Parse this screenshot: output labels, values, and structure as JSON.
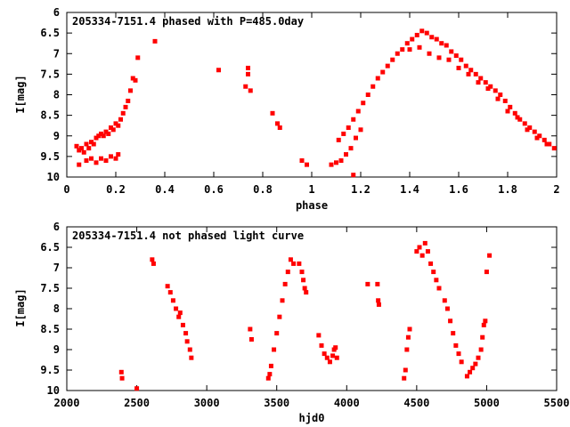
{
  "chart_data": [
    {
      "type": "scatter",
      "title": "205334-7151.4 phased with P=485.0day",
      "xlabel": "phase",
      "ylabel": "I[mag]",
      "xlim": [
        0,
        2
      ],
      "ylim": [
        6,
        10
      ],
      "y_inverted": true,
      "xticks": [
        "0",
        "0.2",
        "0.4",
        "0.6",
        "0.8",
        "1",
        "1.2",
        "1.4",
        "1.6",
        "1.8",
        "2"
      ],
      "xtick_values": [
        0,
        0.2,
        0.4,
        0.6,
        0.8,
        1.0,
        1.2,
        1.4,
        1.6,
        1.8,
        2.0
      ],
      "yticks": [
        "6",
        "6.5",
        "7",
        "7.5",
        "8",
        "8.5",
        "9",
        "9.5",
        "10"
      ],
      "ytick_values": [
        6,
        6.5,
        7,
        7.5,
        8,
        8.5,
        9,
        9.5,
        10
      ],
      "marker_color": "#ff0000",
      "series": [
        {
          "points": [
            [
              0.04,
              9.25
            ],
            [
              0.05,
              9.35
            ],
            [
              0.06,
              9.3
            ],
            [
              0.07,
              9.4
            ],
            [
              0.08,
              9.2
            ],
            [
              0.09,
              9.3
            ],
            [
              0.1,
              9.15
            ],
            [
              0.11,
              9.2
            ],
            [
              0.12,
              9.05
            ],
            [
              0.13,
              9.0
            ],
            [
              0.14,
              8.95
            ],
            [
              0.15,
              9.0
            ],
            [
              0.16,
              8.9
            ],
            [
              0.17,
              8.95
            ],
            [
              0.18,
              8.8
            ],
            [
              0.19,
              8.85
            ],
            [
              0.2,
              8.7
            ],
            [
              0.21,
              8.75
            ],
            [
              0.22,
              8.6
            ],
            [
              0.23,
              8.45
            ],
            [
              0.24,
              8.3
            ],
            [
              0.25,
              8.15
            ],
            [
              0.26,
              7.9
            ],
            [
              0.27,
              7.6
            ],
            [
              0.28,
              7.65
            ],
            [
              0.29,
              7.1
            ],
            [
              0.05,
              9.7
            ],
            [
              0.08,
              9.6
            ],
            [
              0.1,
              9.55
            ],
            [
              0.12,
              9.65
            ],
            [
              0.14,
              9.55
            ],
            [
              0.16,
              9.6
            ],
            [
              0.18,
              9.5
            ],
            [
              0.2,
              9.55
            ],
            [
              0.21,
              9.45
            ],
            [
              0.36,
              6.7
            ],
            [
              0.62,
              7.4
            ],
            [
              0.74,
              7.35
            ],
            [
              0.74,
              7.5
            ],
            [
              0.73,
              7.8
            ],
            [
              0.75,
              7.9
            ],
            [
              0.84,
              8.45
            ],
            [
              0.86,
              8.7
            ],
            [
              0.87,
              8.8
            ],
            [
              0.96,
              9.6
            ],
            [
              0.98,
              9.7
            ],
            [
              1.08,
              9.7
            ],
            [
              1.1,
              9.65
            ],
            [
              1.12,
              9.6
            ],
            [
              1.14,
              9.45
            ],
            [
              1.16,
              9.3
            ],
            [
              1.18,
              9.05
            ],
            [
              1.2,
              8.85
            ],
            [
              1.11,
              9.1
            ],
            [
              1.13,
              8.95
            ],
            [
              1.15,
              8.8
            ],
            [
              1.17,
              8.6
            ],
            [
              1.19,
              8.4
            ],
            [
              1.21,
              8.2
            ],
            [
              1.23,
              8.0
            ],
            [
              1.25,
              7.8
            ],
            [
              1.27,
              7.6
            ],
            [
              1.29,
              7.45
            ],
            [
              1.31,
              7.3
            ],
            [
              1.33,
              7.15
            ],
            [
              1.35,
              7.0
            ],
            [
              1.37,
              6.9
            ],
            [
              1.39,
              6.75
            ],
            [
              1.41,
              6.65
            ],
            [
              1.43,
              6.55
            ],
            [
              1.45,
              6.45
            ],
            [
              1.47,
              6.5
            ],
            [
              1.49,
              6.6
            ],
            [
              1.51,
              6.65
            ],
            [
              1.53,
              6.75
            ],
            [
              1.55,
              6.8
            ],
            [
              1.57,
              6.95
            ],
            [
              1.59,
              7.05
            ],
            [
              1.61,
              7.15
            ],
            [
              1.63,
              7.3
            ],
            [
              1.65,
              7.4
            ],
            [
              1.67,
              7.5
            ],
            [
              1.69,
              7.6
            ],
            [
              1.71,
              7.7
            ],
            [
              1.73,
              7.8
            ],
            [
              1.75,
              7.9
            ],
            [
              1.77,
              8.0
            ],
            [
              1.79,
              8.15
            ],
            [
              1.81,
              8.3
            ],
            [
              1.83,
              8.45
            ],
            [
              1.85,
              8.6
            ],
            [
              1.87,
              8.7
            ],
            [
              1.89,
              8.8
            ],
            [
              1.91,
              8.9
            ],
            [
              1.93,
              9.0
            ],
            [
              1.95,
              9.1
            ],
            [
              1.97,
              9.2
            ],
            [
              1.99,
              9.3
            ],
            [
              1.4,
              6.9
            ],
            [
              1.44,
              6.85
            ],
            [
              1.48,
              7.0
            ],
            [
              1.52,
              7.1
            ],
            [
              1.56,
              7.15
            ],
            [
              1.6,
              7.35
            ],
            [
              1.64,
              7.5
            ],
            [
              1.68,
              7.7
            ],
            [
              1.72,
              7.85
            ],
            [
              1.76,
              8.1
            ],
            [
              1.8,
              8.4
            ],
            [
              1.84,
              8.55
            ],
            [
              1.88,
              8.85
            ],
            [
              1.92,
              9.05
            ],
            [
              1.96,
              9.2
            ],
            [
              1.17,
              9.95
            ]
          ]
        }
      ]
    },
    {
      "type": "scatter",
      "title": "205334-7151.4 not phased light curve",
      "xlabel": "hjd0",
      "ylabel": "I[mag]",
      "xlim": [
        2000,
        5500
      ],
      "ylim": [
        6,
        10
      ],
      "y_inverted": true,
      "xticks": [
        "2000",
        "2500",
        "3000",
        "3500",
        "4000",
        "4500",
        "5000",
        "5500"
      ],
      "xtick_values": [
        2000,
        2500,
        3000,
        3500,
        4000,
        4500,
        5000,
        5500
      ],
      "yticks": [
        "6",
        "6.5",
        "7",
        "7.5",
        "8",
        "8.5",
        "9",
        "9.5",
        "10"
      ],
      "ytick_values": [
        6,
        6.5,
        7,
        7.5,
        8,
        8.5,
        9,
        9.5,
        10
      ],
      "marker_color": "#ff0000",
      "series": [
        {
          "points": [
            [
              2390,
              9.55
            ],
            [
              2395,
              9.7
            ],
            [
              2500,
              9.95
            ],
            [
              2610,
              6.8
            ],
            [
              2620,
              6.9
            ],
            [
              2720,
              7.45
            ],
            [
              2740,
              7.6
            ],
            [
              2760,
              7.8
            ],
            [
              2780,
              8.0
            ],
            [
              2800,
              8.2
            ],
            [
              2810,
              8.1
            ],
            [
              2830,
              8.4
            ],
            [
              2850,
              8.6
            ],
            [
              2860,
              8.8
            ],
            [
              2880,
              9.0
            ],
            [
              2890,
              9.2
            ],
            [
              3310,
              8.5
            ],
            [
              3320,
              8.75
            ],
            [
              3440,
              9.7
            ],
            [
              3450,
              9.6
            ],
            [
              3460,
              9.4
            ],
            [
              3480,
              9.0
            ],
            [
              3500,
              8.6
            ],
            [
              3520,
              8.2
            ],
            [
              3540,
              7.8
            ],
            [
              3560,
              7.4
            ],
            [
              3580,
              7.1
            ],
            [
              3600,
              6.8
            ],
            [
              3620,
              6.9
            ],
            [
              3660,
              6.9
            ],
            [
              3680,
              7.1
            ],
            [
              3690,
              7.3
            ],
            [
              3700,
              7.5
            ],
            [
              3710,
              7.6
            ],
            [
              3800,
              8.65
            ],
            [
              3820,
              8.9
            ],
            [
              3840,
              9.1
            ],
            [
              3860,
              9.2
            ],
            [
              3880,
              9.3
            ],
            [
              3900,
              9.15
            ],
            [
              3910,
              9.0
            ],
            [
              3920,
              8.95
            ],
            [
              3930,
              9.2
            ],
            [
              4150,
              7.4
            ],
            [
              4220,
              7.4
            ],
            [
              4225,
              7.8
            ],
            [
              4230,
              7.9
            ],
            [
              4410,
              9.7
            ],
            [
              4420,
              9.5
            ],
            [
              4430,
              9.0
            ],
            [
              4440,
              8.7
            ],
            [
              4450,
              8.5
            ],
            [
              4500,
              6.6
            ],
            [
              4520,
              6.5
            ],
            [
              4540,
              6.7
            ],
            [
              4560,
              6.4
            ],
            [
              4580,
              6.6
            ],
            [
              4600,
              6.9
            ],
            [
              4620,
              7.1
            ],
            [
              4640,
              7.3
            ],
            [
              4660,
              7.5
            ],
            [
              4700,
              7.8
            ],
            [
              4720,
              8.0
            ],
            [
              4740,
              8.3
            ],
            [
              4760,
              8.6
            ],
            [
              4780,
              8.9
            ],
            [
              4800,
              9.1
            ],
            [
              4820,
              9.3
            ],
            [
              4860,
              9.65
            ],
            [
              4880,
              9.55
            ],
            [
              4900,
              9.45
            ],
            [
              4920,
              9.35
            ],
            [
              4940,
              9.2
            ],
            [
              4960,
              9.0
            ],
            [
              4970,
              8.7
            ],
            [
              4980,
              8.4
            ],
            [
              4990,
              8.3
            ],
            [
              5000,
              7.1
            ],
            [
              5020,
              6.7
            ]
          ]
        }
      ]
    }
  ]
}
